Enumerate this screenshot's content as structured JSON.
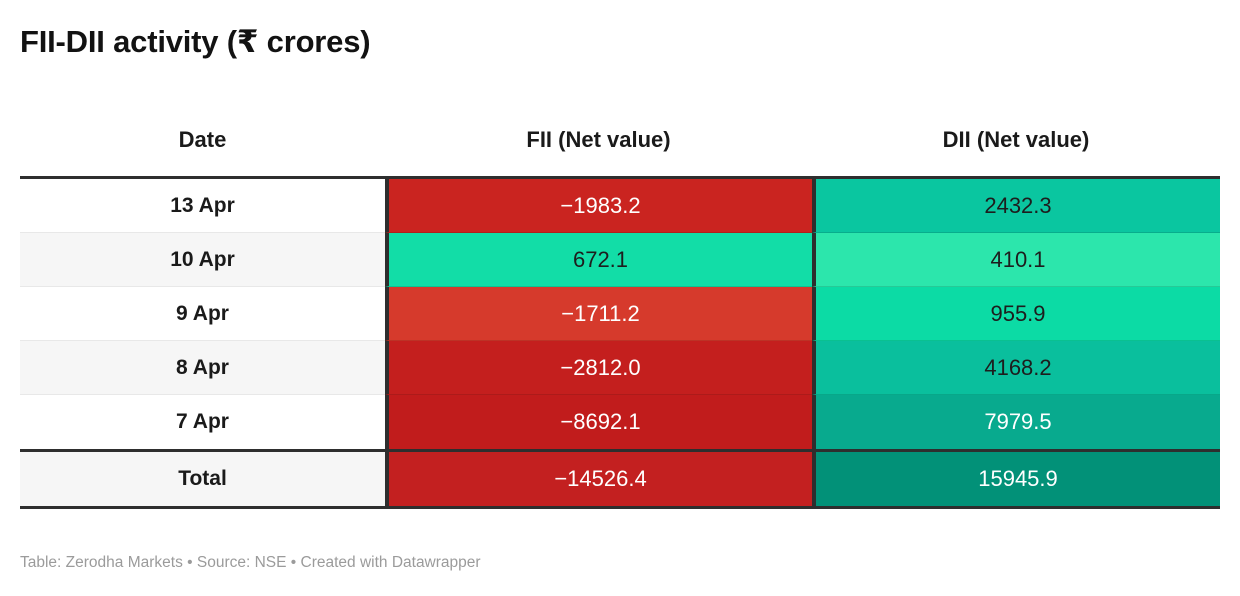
{
  "title": "FII-DII activity (₹ crores)",
  "footer": "Table: Zerodha Markets • Source: NSE • Created with Datawrapper",
  "table": {
    "columns": [
      "Date",
      "FII (Net value)",
      "DII (Net value)"
    ],
    "rows": [
      {
        "date": "13 Apr",
        "fii": "−1983.2",
        "dii": "2432.3",
        "fii_bg": "#ca2420",
        "fii_fg": "#ffffff",
        "dii_bg": "#0ac6a0",
        "dii_fg": "#1d1d1d"
      },
      {
        "date": "10 Apr",
        "fii": "672.1",
        "dii": "410.1",
        "fii_bg": "#12dda7",
        "fii_fg": "#1d1d1d",
        "dii_bg": "#2ce6ac",
        "dii_fg": "#1d1d1d"
      },
      {
        "date": "9 Apr",
        "fii": "−1711.2",
        "dii": "955.9",
        "fii_bg": "#d63a2c",
        "fii_fg": "#ffffff",
        "dii_bg": "#0cdba5",
        "dii_fg": "#1d1d1d"
      },
      {
        "date": "8 Apr",
        "fii": "−2812.0",
        "dii": "4168.2",
        "fii_bg": "#c41f1e",
        "fii_fg": "#ffffff",
        "dii_bg": "#0abf9d",
        "dii_fg": "#1d1d1d"
      },
      {
        "date": "7 Apr",
        "fii": "−8692.1",
        "dii": "7979.5",
        "fii_bg": "#c11c1c",
        "fii_fg": "#ffffff",
        "dii_bg": "#08aa8e",
        "dii_fg": "#ffffff"
      }
    ],
    "total": {
      "label": "Total",
      "fii": "−14526.4",
      "dii": "15945.9",
      "fii_bg": "#c32020",
      "fii_fg": "#ffffff",
      "dii_bg": "#029178",
      "dii_fg": "#ffffff"
    }
  },
  "colors": {
    "border_dark": "#2e2e2e",
    "stripe_light": "#f6f6f6",
    "footer_text": "#9b9b9b"
  },
  "chart_data": {
    "type": "table",
    "title": "FII-DII activity (₹ crores)",
    "columns": [
      "Date",
      "FII (Net value)",
      "DII (Net value)"
    ],
    "rows": [
      [
        "13 Apr",
        -1983.2,
        2432.3
      ],
      [
        "10 Apr",
        672.1,
        410.1
      ],
      [
        "9 Apr",
        -1711.2,
        955.9
      ],
      [
        "8 Apr",
        -2812.0,
        4168.2
      ],
      [
        "7 Apr",
        -8692.1,
        7979.5
      ],
      [
        "Total",
        -14526.4,
        15945.9
      ]
    ],
    "layout_hints": "heatmap-colored cells: negative values red (white text), positive values green-to-teal scale (dark text, white text on darkest); alternating row stripes in Date column; bold dark rules above body, above total row and below total row",
    "source_note": "Table: Zerodha Markets • Source: NSE • Created with Datawrapper"
  }
}
